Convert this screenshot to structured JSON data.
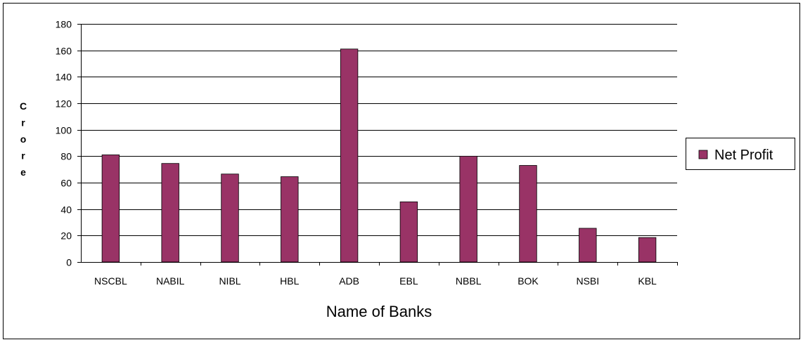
{
  "chart_data": {
    "type": "bar",
    "title": "",
    "xlabel": "Name of Banks",
    "ylabel": "Crore",
    "categories": [
      "NSCBL",
      "NABIL",
      "NIBL",
      "HBL",
      "ADB",
      "EBL",
      "NBBL",
      "BOK",
      "NSBI",
      "KBL"
    ],
    "series": [
      {
        "name": "Net Profit",
        "values": [
          81,
          74.5,
          66.5,
          64.5,
          161,
          45.5,
          80,
          73,
          25.5,
          18.5
        ],
        "color": "#993366"
      }
    ],
    "ylim": [
      0,
      180
    ],
    "yticks": [
      0,
      20,
      40,
      60,
      80,
      100,
      120,
      140,
      160,
      180
    ],
    "grid": true,
    "legend_position": "right"
  }
}
